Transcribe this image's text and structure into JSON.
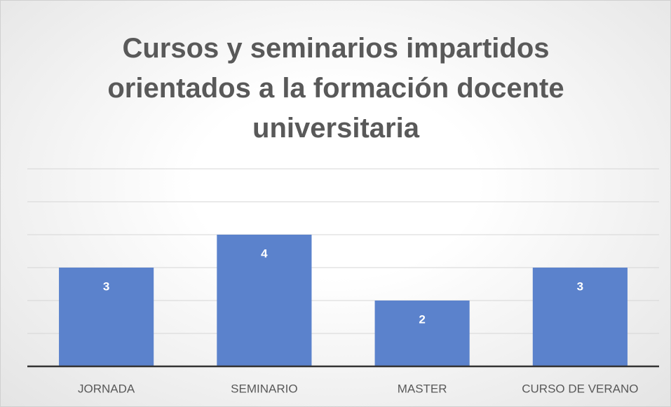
{
  "chart_data": {
    "type": "bar",
    "title": "Cursos y seminarios impartidos orientados a la formación docente universitaria",
    "categories": [
      "JORNADA",
      "SEMINARIO",
      "MASTER",
      "CURSO DE VERANO"
    ],
    "values": [
      3,
      4,
      2,
      3
    ],
    "color": "#5b82cc",
    "ylim": [
      0,
      6
    ],
    "yticks": [
      0,
      1,
      2,
      3,
      4,
      5,
      6
    ],
    "grid": true
  }
}
